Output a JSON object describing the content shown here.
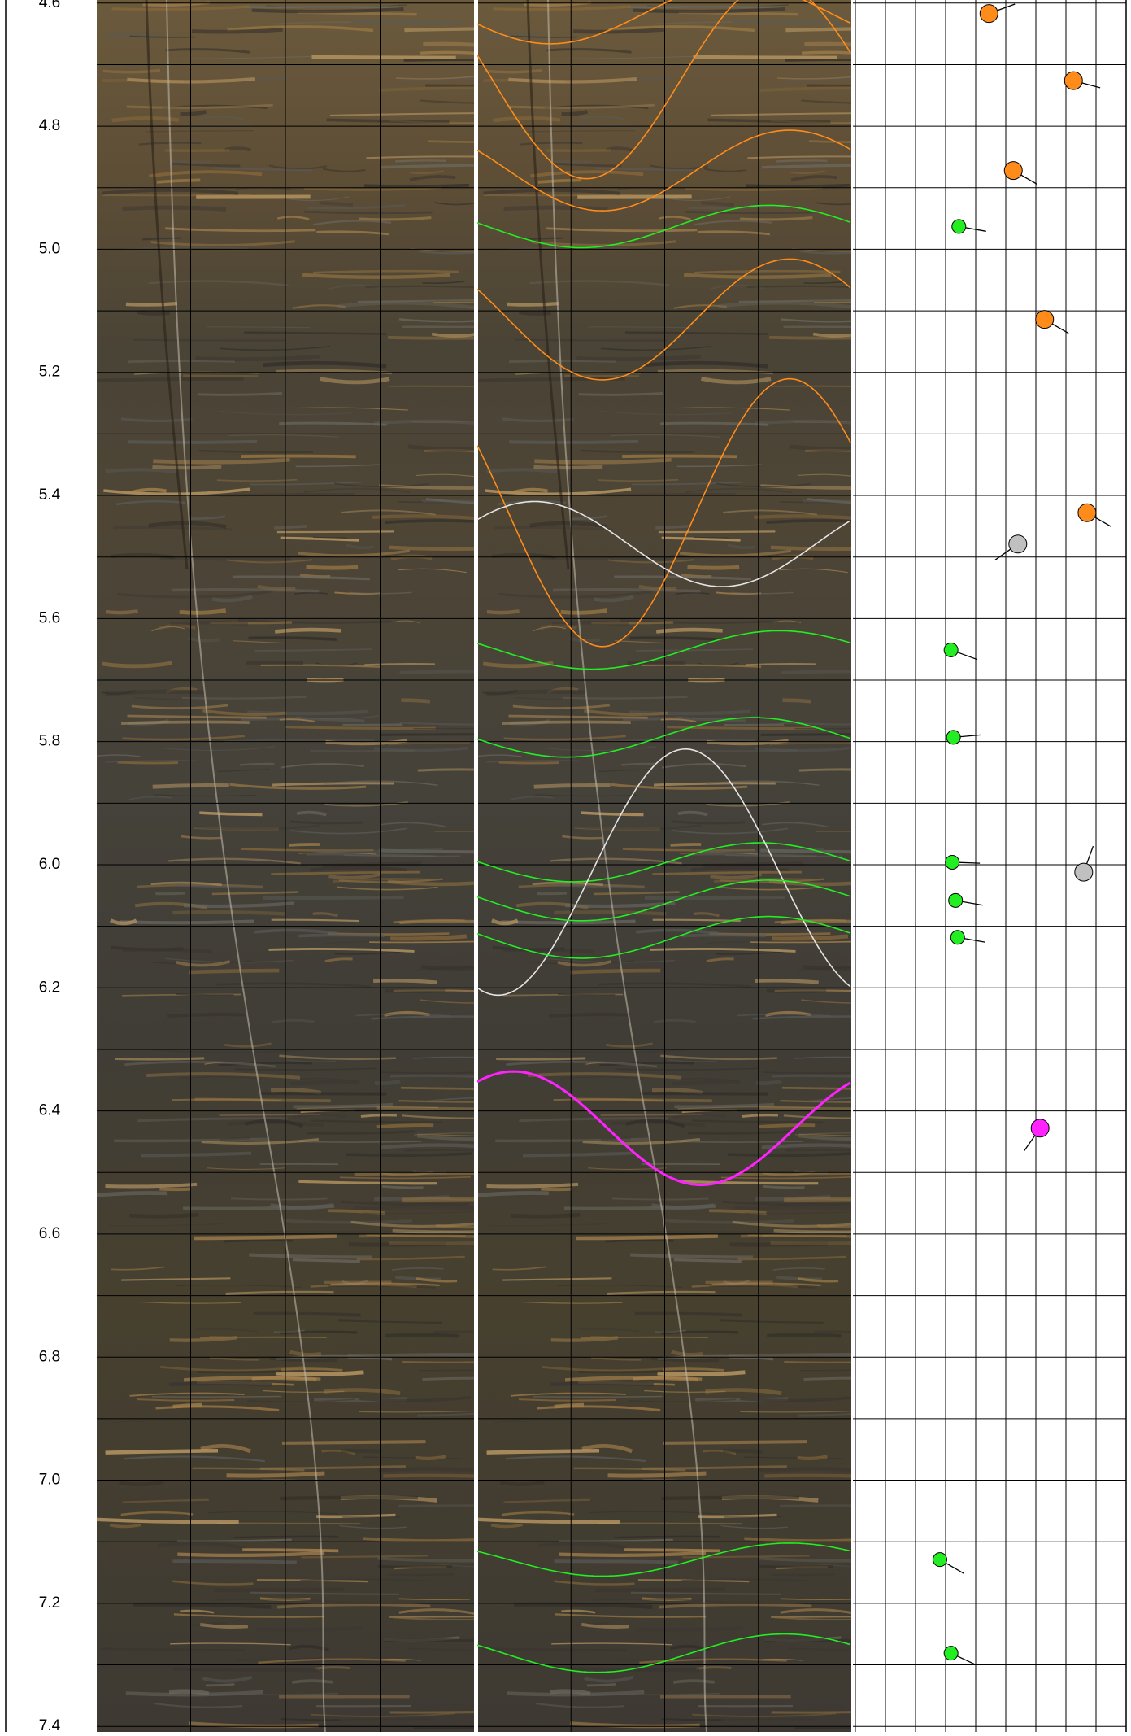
{
  "chart_data": {
    "type": "tadpole",
    "ylim": [
      4.595,
      7.409
    ],
    "yticks": [
      4.6,
      4.8,
      {
        "value": 5,
        "label": "5.0"
      },
      5.2,
      5.4,
      5.6,
      5.8,
      {
        "value": 6,
        "label": "6.0"
      },
      6.2,
      6.4,
      6.6,
      6.8,
      {
        "value": 7,
        "label": "7.0"
      },
      7.2,
      7.4
    ],
    "yminorticks": [
      4.7,
      4.9,
      5.1,
      5.3,
      5.5,
      5.7,
      5.9,
      6.1,
      6.3,
      6.5,
      6.7,
      6.9,
      7.1,
      7.3
    ],
    "xlim": [
      0,
      90
    ],
    "xticks": [
      0,
      10,
      20,
      30,
      40,
      50,
      60,
      70,
      80,
      90
    ],
    "grid": true,
    "depth": [
      4.617,
      4.726,
      4.872,
      4.963,
      5.114,
      5.428,
      5.479,
      5.651,
      5.793,
      5.996,
      6.012,
      6.058,
      6.118,
      6.428,
      7.129,
      7.281
    ],
    "dip": [
      44.4,
      72.5,
      52.5,
      34.4,
      62.9,
      77,
      54,
      31.8,
      32.6,
      32.2,
      75.9,
      33.3,
      34,
      61.4,
      28.1,
      31.8
    ],
    "azimuth": [
      70,
      105,
      120,
      100,
      120,
      120,
      235,
      110,
      85,
      92,
      20,
      100,
      100,
      215,
      120,
      115
    ],
    "colors": [
      "#ff8c1a",
      "#ff8c1a",
      "#ff8c1a",
      "#22ee22",
      "#ff8c1a",
      "#ff8c1a",
      "#c0c0c0",
      "#22ee22",
      "#22ee22",
      "#22ee22",
      "#c0c0c0",
      "#22ee22",
      "#22ee22",
      "#ff22ff",
      "#22ee22",
      "#22ee22"
    ]
  }
}
